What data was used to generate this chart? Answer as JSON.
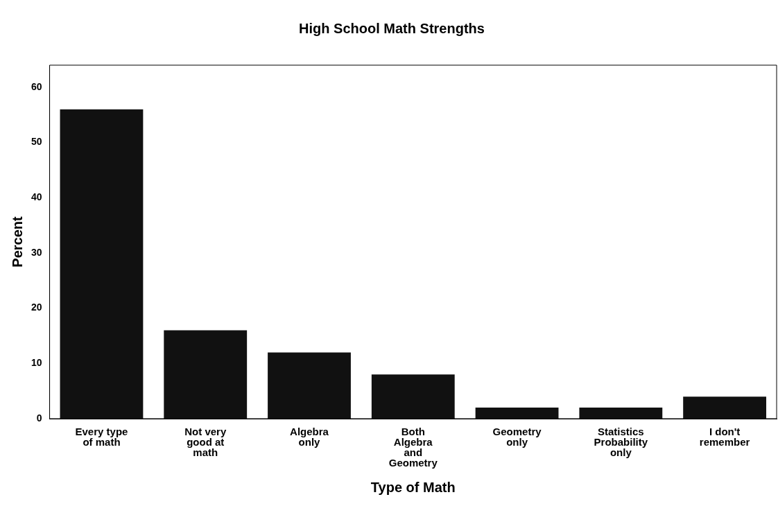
{
  "chart_data": {
    "type": "bar",
    "title": "High School Math Strengths",
    "xlabel": "Type of Math",
    "ylabel": "Percent",
    "categories": [
      "Every type of math",
      "Not very good at math",
      "Algebra only",
      "Both Algebra and Geometry",
      "Geometry only",
      "Statistics Probability only",
      "I don't remember"
    ],
    "values": [
      56,
      16,
      12,
      8,
      2,
      2,
      4
    ],
    "color": "#111111",
    "ylim": [
      0,
      64
    ],
    "yticks": [
      0,
      10,
      20,
      30,
      40,
      50,
      60
    ],
    "grid": false,
    "legend": false
  }
}
